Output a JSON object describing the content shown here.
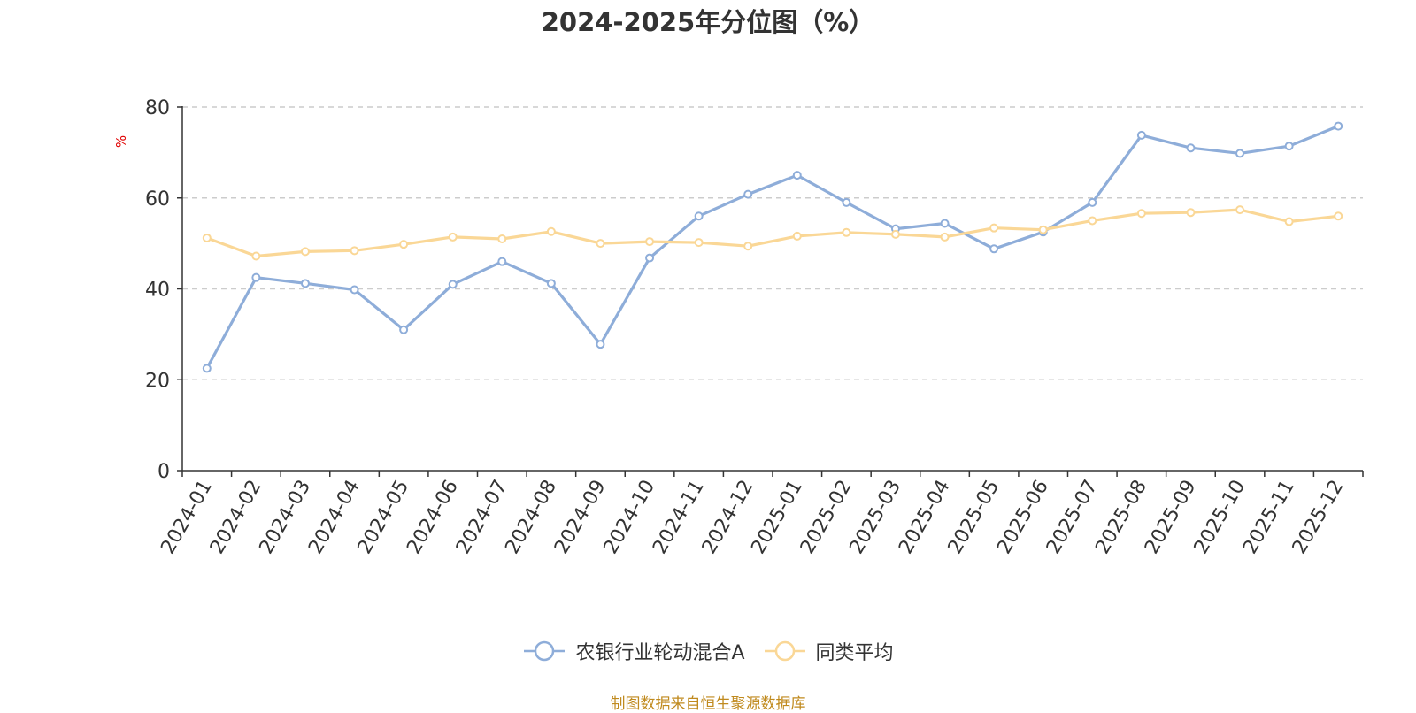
{
  "source_note": "制图数据来自恒生聚源数据库",
  "chart_data": {
    "type": "line",
    "title": "2024-2025年分位图（%）",
    "ylabel": "%",
    "xlabel": "",
    "ylim": [
      0,
      80
    ],
    "yticks": [
      0,
      20,
      40,
      60,
      80
    ],
    "grid": true,
    "legend_position": "bottom",
    "categories": [
      "2024-01",
      "2024-02",
      "2024-03",
      "2024-04",
      "2024-05",
      "2024-06",
      "2024-07",
      "2024-08",
      "2024-09",
      "2024-10",
      "2024-11",
      "2024-12",
      "2025-01",
      "2025-02",
      "2025-03",
      "2025-04",
      "2025-05",
      "2025-06",
      "2025-07",
      "2025-08",
      "2025-09",
      "2025-10",
      "2025-11",
      "2025-12"
    ],
    "series": [
      {
        "name": "农银行业轮动混合A",
        "color": "#8eadd9",
        "values": [
          22.5,
          42.5,
          41.2,
          39.8,
          31.0,
          41.0,
          46.0,
          41.2,
          27.8,
          46.8,
          56.0,
          60.8,
          65.0,
          59.0,
          53.2,
          54.4,
          48.8,
          52.5,
          59.0,
          73.8,
          71.0,
          69.8,
          71.4,
          75.8
        ]
      },
      {
        "name": "同类平均",
        "color": "#fad796",
        "values": [
          51.2,
          47.2,
          48.2,
          48.4,
          49.8,
          51.4,
          51.0,
          52.6,
          50.0,
          50.4,
          50.2,
          49.4,
          51.6,
          52.4,
          52.0,
          51.4,
          53.4,
          53.0,
          55.0,
          56.6,
          56.8,
          57.4,
          54.8,
          56.0
        ]
      }
    ]
  }
}
